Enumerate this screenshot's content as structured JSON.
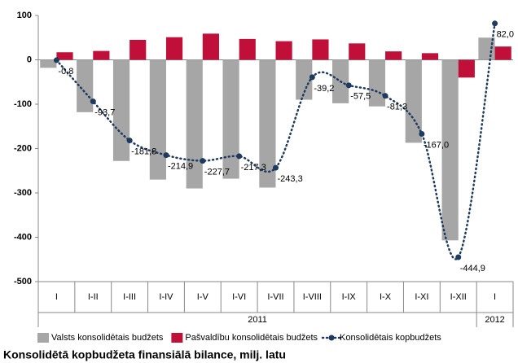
{
  "chart_data": {
    "type": "bar-line",
    "title": "Konsolidētā kopbudžeta finansiālā bilance, milj. latu",
    "categories": [
      "I",
      "I-II",
      "I-III",
      "I-IV",
      "I-V",
      "I-VI",
      "I-VII",
      "I-VIII",
      "I-IX",
      "I-X",
      "I-XI",
      "I-XII",
      "I"
    ],
    "x_groups": [
      {
        "label": "2011",
        "categories": 12
      },
      {
        "label": "2012",
        "categories": 1
      }
    ],
    "series": [
      {
        "name": "Valsts konsolidētais budžets",
        "kind": "bar",
        "color": "#a6a6a6",
        "values": [
          -18,
          -118,
          -228,
          -270,
          -290,
          -268,
          -288,
          -90,
          -98,
          -105,
          -187,
          -407,
          50
        ]
      },
      {
        "name": "Pašvaldību konsolidētais budžets",
        "kind": "bar",
        "color": "#c0103a",
        "values": [
          17,
          20,
          45,
          51,
          59,
          47,
          42,
          46,
          37,
          19,
          15,
          -40,
          30
        ]
      },
      {
        "name": "Konsolidētais kopbudžets",
        "kind": "line",
        "color": "#1f3a5f",
        "values": [
          -0.8,
          -93.7,
          -181.8,
          -214.9,
          -227.7,
          -217.3,
          -243.3,
          -39.2,
          -57.5,
          -81.3,
          -167.0,
          -444.9,
          82.0
        ],
        "value_labels": [
          "-0,8",
          "-93,7",
          "-181,8",
          "-214,9",
          "-227,7",
          "-217,3",
          "-243,3",
          "-39,2",
          "-57,5",
          "-81,3",
          "-167,0",
          "-444,9",
          "82,0"
        ]
      }
    ],
    "ylim": [
      -500,
      100
    ],
    "yticks": [
      -500,
      -400,
      -300,
      -200,
      -100,
      0,
      100
    ],
    "grid": false
  }
}
